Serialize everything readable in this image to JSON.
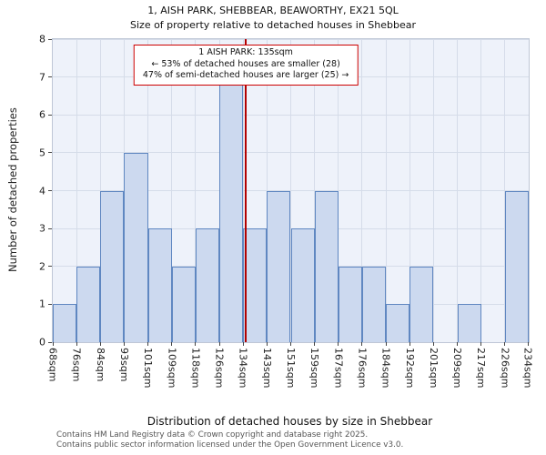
{
  "title": "1, AISH PARK, SHEBBEAR, BEAWORTHY, EX21 5QL",
  "subtitle": "Size of property relative to detached houses in Shebbear",
  "annotation": {
    "line1": "1 AISH PARK: 135sqm",
    "line2": "← 53% of detached houses are smaller (28)",
    "line3": "47% of semi-detached houses are larger (25) →"
  },
  "chart_data": {
    "type": "bar",
    "title": "1, AISH PARK, SHEBBEAR, BEAWORTHY, EX21 5QL",
    "subtitle": "Size of property relative to detached houses in Shebbear",
    "xlabel": "Distribution of detached houses by size in Shebbear",
    "ylabel": "Number of detached properties",
    "ylim": [
      0,
      8
    ],
    "yticks": [
      0,
      1,
      2,
      3,
      4,
      5,
      6,
      7,
      8
    ],
    "bin_edge_labels": [
      "68sqm",
      "76sqm",
      "84sqm",
      "93sqm",
      "101sqm",
      "109sqm",
      "118sqm",
      "126sqm",
      "134sqm",
      "143sqm",
      "151sqm",
      "159sqm",
      "167sqm",
      "176sqm",
      "184sqm",
      "192sqm",
      "201sqm",
      "209sqm",
      "217sqm",
      "226sqm",
      "234sqm"
    ],
    "values": [
      1,
      2,
      4,
      5,
      3,
      2,
      3,
      7,
      3,
      4,
      3,
      4,
      2,
      2,
      1,
      2,
      0,
      1,
      0,
      4
    ],
    "marker": {
      "property_sqm": 135,
      "label": "135sqm"
    },
    "grid": true,
    "legend": false
  },
  "footer": {
    "line1": "Contains HM Land Registry data © Crown copyright and database right 2025.",
    "line2": "Contains public sector information licensed under the Open Government Licence v3.0."
  },
  "colors": {
    "bar_fill": "#ccd9ef",
    "bar_border": "#5f87c1",
    "marker_line": "#b20000",
    "annotation_border": "#cc0000",
    "plot_bg": "#eef2fa",
    "grid_line": "#d5dce9"
  }
}
